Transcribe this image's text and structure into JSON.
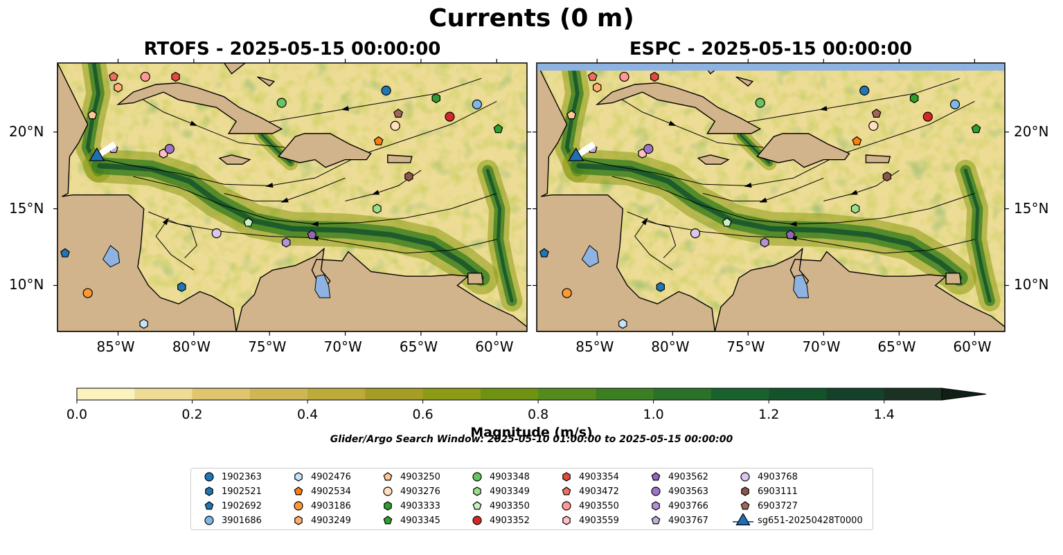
{
  "figure": {
    "suptitle": "Currents (0 m)",
    "search_window": "Glider/Argo Search Window: 2025-05-10 01:00:00 to 2025-05-15 00:00:00",
    "colors": {
      "land": "#d2b48c",
      "water_invalid": "#8fb3e0",
      "lake": "#8fb3e0",
      "coastline": "#000000",
      "streamline": "#000000",
      "glider_marker": "#1f6fb4"
    }
  },
  "maps": [
    {
      "title": "RTOFS - 2025-05-15 00:00:00",
      "extent": {
        "lon": [
          -89,
          -58
        ],
        "lat": [
          7,
          24.5
        ]
      },
      "xticks": [
        "85°W",
        "80°W",
        "75°W",
        "70°W",
        "65°W",
        "60°W"
      ],
      "xtick_values": [
        -85,
        -80,
        -75,
        -70,
        -65,
        -60
      ],
      "yticks": [
        "20°N",
        "15°N",
        "10°N"
      ],
      "ytick_values": [
        20,
        15,
        10
      ],
      "ytick_side": "left",
      "has_top_missing_band": false
    },
    {
      "title": "ESPC - 2025-05-15 00:00:00",
      "extent": {
        "lon": [
          -89,
          -58
        ],
        "lat": [
          7,
          24.5
        ]
      },
      "xticks": [
        "85°W",
        "80°W",
        "75°W",
        "70°W",
        "65°W",
        "60°W"
      ],
      "xtick_values": [
        -85,
        -80,
        -75,
        -70,
        -65,
        -60
      ],
      "yticks": [
        "20°N",
        "15°N",
        "10°N"
      ],
      "ytick_values": [
        20,
        15,
        10
      ],
      "ytick_side": "right",
      "has_top_missing_band": true
    }
  ],
  "colorbar": {
    "label": "Magnitude (m/s)",
    "ticks": [
      "0.0",
      "0.2",
      "0.4",
      "0.6",
      "0.8",
      "1.0",
      "1.2",
      "1.4"
    ],
    "tick_values": [
      0.0,
      0.2,
      0.4,
      0.6,
      0.8,
      1.0,
      1.2,
      1.4
    ],
    "range": [
      0,
      1.5
    ],
    "extend": "max",
    "levels": [
      0,
      0.1,
      0.2,
      0.3,
      0.4,
      0.5,
      0.6,
      0.7,
      0.8,
      0.9,
      1.0,
      1.1,
      1.2,
      1.3,
      1.4,
      1.5
    ],
    "colors": [
      "#faf3bd",
      "#eddc95",
      "#dfc56e",
      "#cfb654",
      "#bcaa3b",
      "#a59d26",
      "#8c9a16",
      "#6f9213",
      "#558a1c",
      "#3c7f23",
      "#2a7228",
      "#19622e",
      "#14522c",
      "#15412a",
      "#1b3222"
    ]
  },
  "legend": [
    {
      "label": "1902363",
      "marker": "circle",
      "color": "#1f77b4"
    },
    {
      "label": "1902521",
      "marker": "hexagon",
      "color": "#1f77b4"
    },
    {
      "label": "1902692",
      "marker": "pentagon",
      "color": "#1f77b4"
    },
    {
      "label": "3901686",
      "marker": "circle",
      "color": "#7fb8e6"
    },
    {
      "label": "4902476",
      "marker": "hexagon",
      "color": "#c5e4f7"
    },
    {
      "label": "4902534",
      "marker": "pentagon",
      "color": "#ff7f0e"
    },
    {
      "label": "4903186",
      "marker": "circle",
      "color": "#ff9933"
    },
    {
      "label": "4903249",
      "marker": "hexagon",
      "color": "#ffb070"
    },
    {
      "label": "4903250",
      "marker": "pentagon",
      "color": "#ffc896"
    },
    {
      "label": "4903276",
      "marker": "circle",
      "color": "#ffe0bd"
    },
    {
      "label": "4903333",
      "marker": "hexagon",
      "color": "#2ca02c"
    },
    {
      "label": "4903345",
      "marker": "pentagon",
      "color": "#2ca02c"
    },
    {
      "label": "4903348",
      "marker": "circle",
      "color": "#66c461"
    },
    {
      "label": "4903349",
      "marker": "hexagon",
      "color": "#98df8a"
    },
    {
      "label": "4903350",
      "marker": "pentagon",
      "color": "#c8f2bf"
    },
    {
      "label": "4903352",
      "marker": "circle",
      "color": "#d62728"
    },
    {
      "label": "4903354",
      "marker": "hexagon",
      "color": "#e04a3f"
    },
    {
      "label": "4903472",
      "marker": "pentagon",
      "color": "#f07060"
    },
    {
      "label": "4903550",
      "marker": "circle",
      "color": "#ff9896"
    },
    {
      "label": "4903559",
      "marker": "hexagon",
      "color": "#ffc0c0"
    },
    {
      "label": "4903562",
      "marker": "pentagon",
      "color": "#9467bd"
    },
    {
      "label": "4903563",
      "marker": "circle",
      "color": "#9f73c8"
    },
    {
      "label": "4903766",
      "marker": "hexagon",
      "color": "#b591d6"
    },
    {
      "label": "4903767",
      "marker": "pentagon",
      "color": "#c5b0d5"
    },
    {
      "label": "4903768",
      "marker": "circle",
      "color": "#dcc6f0"
    },
    {
      "label": "6903111",
      "marker": "hexagon",
      "color": "#8c564b"
    },
    {
      "label": "6903727",
      "marker": "pentagon",
      "color": "#a0685c"
    },
    {
      "label": "sg651-20250428T0000",
      "marker": "triangle-line",
      "color": "#1f6fb4"
    }
  ],
  "floats": [
    {
      "id": "1902363",
      "lon": -67.3,
      "lat": 22.7
    },
    {
      "id": "1902521",
      "lon": -80.8,
      "lat": 9.9
    },
    {
      "id": "1902692",
      "lon": -88.5,
      "lat": 12.1
    },
    {
      "id": "3901686",
      "lon": -61.3,
      "lat": 21.8
    },
    {
      "id": "4902476",
      "lon": -83.3,
      "lat": 7.5
    },
    {
      "id": "4902534",
      "lon": -67.8,
      "lat": 19.4
    },
    {
      "id": "4903186",
      "lon": -87.0,
      "lat": 9.5
    },
    {
      "id": "4903249",
      "lon": -85.0,
      "lat": 22.9
    },
    {
      "id": "4903250",
      "lon": -86.7,
      "lat": 21.1
    },
    {
      "id": "4903276",
      "lon": -66.7,
      "lat": 20.4
    },
    {
      "id": "4903333",
      "lon": -64.0,
      "lat": 22.2
    },
    {
      "id": "4903345",
      "lon": -59.9,
      "lat": 20.2
    },
    {
      "id": "4903348",
      "lon": -74.2,
      "lat": 21.9
    },
    {
      "id": "4903349",
      "lon": -67.9,
      "lat": 15.0
    },
    {
      "id": "4903350",
      "lon": -76.4,
      "lat": 14.1
    },
    {
      "id": "4903352",
      "lon": -63.1,
      "lat": 21.0
    },
    {
      "id": "4903354",
      "lon": -81.2,
      "lat": 23.6
    },
    {
      "id": "4903472",
      "lon": -85.3,
      "lat": 23.6
    },
    {
      "id": "4903550",
      "lon": -83.2,
      "lat": 23.6
    },
    {
      "id": "4903559",
      "lon": -82.0,
      "lat": 18.6
    },
    {
      "id": "4903562",
      "lon": -72.2,
      "lat": 13.3
    },
    {
      "id": "4903563",
      "lon": -81.6,
      "lat": 18.9
    },
    {
      "id": "4903766",
      "lon": -73.9,
      "lat": 12.8
    },
    {
      "id": "4903767",
      "lon": -85.3,
      "lat": 18.9
    },
    {
      "id": "4903768",
      "lon": -78.5,
      "lat": 13.4
    },
    {
      "id": "6903111",
      "lon": -65.8,
      "lat": 17.1
    },
    {
      "id": "6903727",
      "lon": -66.5,
      "lat": 21.2
    }
  ],
  "glider": {
    "id": "sg651-20250428T0000",
    "lon": -86.4,
    "lat": 18.4
  }
}
